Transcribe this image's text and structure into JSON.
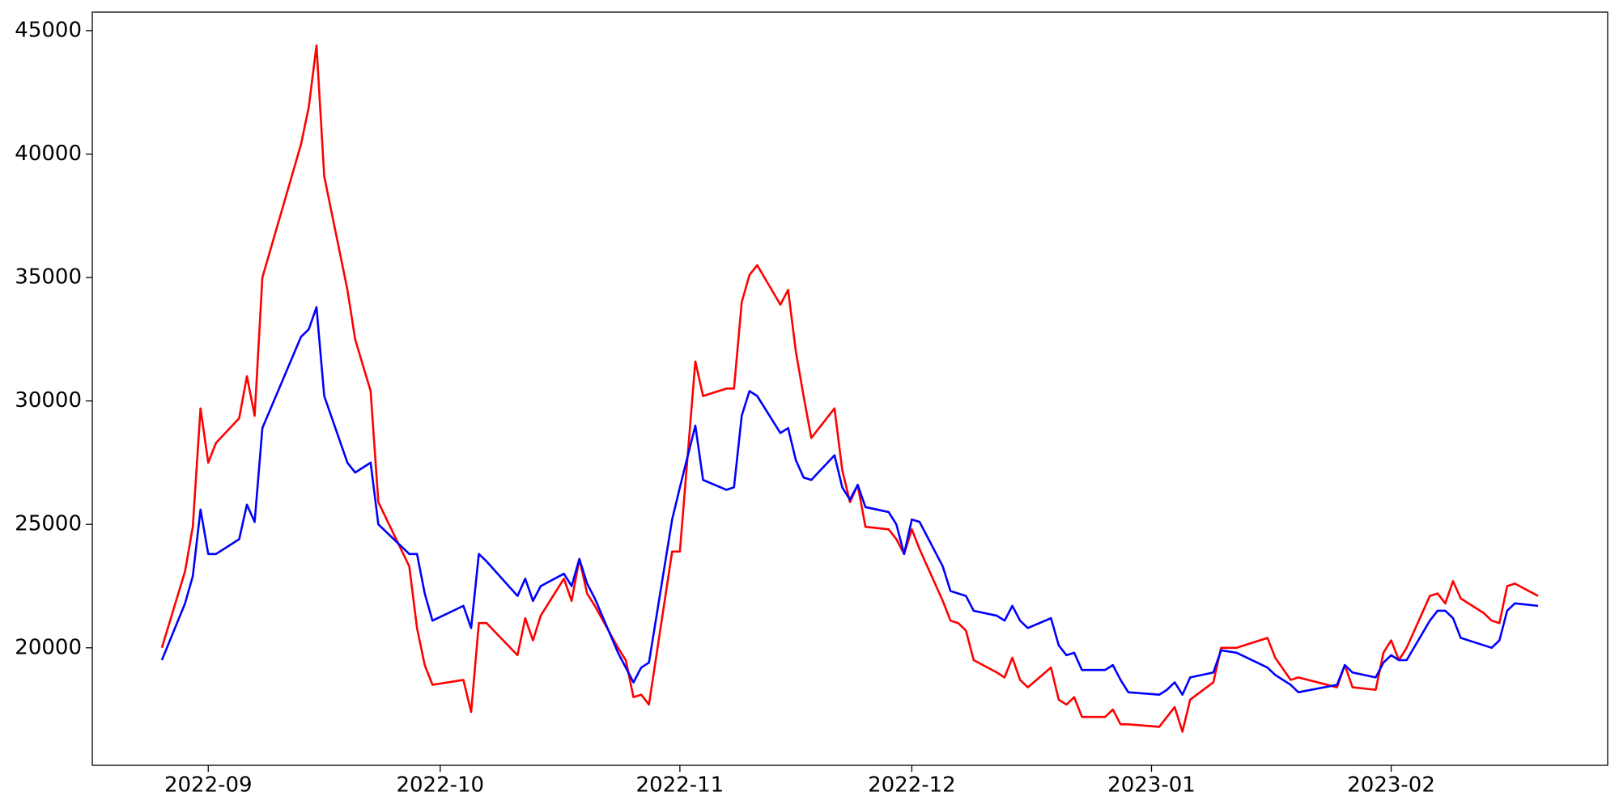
{
  "chart_data": {
    "type": "line",
    "x": [
      -6,
      -3,
      -2,
      -1,
      0,
      1,
      4,
      5,
      6,
      7,
      12,
      13,
      14,
      15,
      18,
      19,
      21,
      22,
      26,
      27,
      28,
      29,
      33,
      34,
      35,
      36,
      40,
      41,
      42,
      43,
      46,
      47,
      48,
      49,
      50,
      53,
      54,
      55,
      56,
      57,
      60,
      61,
      63,
      64,
      67,
      68,
      69,
      70,
      71,
      74,
      75,
      76,
      77,
      78,
      81,
      82,
      83,
      84,
      85,
      88,
      89,
      90,
      91,
      92,
      95,
      96,
      97,
      98,
      99,
      102,
      103,
      104,
      105,
      106,
      109,
      110,
      111,
      112,
      113,
      116,
      117,
      118,
      119,
      123,
      124,
      125,
      126,
      127,
      130,
      131,
      133,
      137,
      138,
      140,
      141,
      146,
      147,
      148,
      151,
      152,
      153,
      154,
      155,
      158,
      159,
      160,
      161,
      162,
      165,
      166,
      167,
      168,
      169,
      172
    ],
    "series": [
      {
        "color": "#ff0000",
        "values": [
          20000,
          23100,
          24900,
          29700,
          27500,
          28300,
          29300,
          31000,
          29400,
          35000,
          40400,
          41900,
          44400,
          39100,
          34500,
          32500,
          30400,
          25900,
          23300,
          20800,
          19300,
          18500,
          18700,
          17400,
          21000,
          21000,
          19700,
          21200,
          20300,
          21300,
          22800,
          21900,
          23600,
          22200,
          21700,
          20000,
          19500,
          18000,
          18100,
          17700,
          23900,
          23900,
          31600,
          30200,
          30500,
          30500,
          34000,
          35100,
          35500,
          33900,
          34500,
          32000,
          30200,
          28500,
          29700,
          27200,
          25900,
          26600,
          24900,
          24800,
          24400,
          23800,
          24800,
          24000,
          21900,
          21100,
          21000,
          20700,
          19500,
          19000,
          18800,
          19600,
          18700,
          18400,
          19200,
          17900,
          17700,
          18000,
          17200,
          17200,
          17500,
          16900,
          16900,
          16800,
          17200,
          17600,
          16600,
          17900,
          18600,
          20000,
          20000,
          20400,
          19600,
          18700,
          18800,
          18400,
          19300,
          18400,
          18300,
          19800,
          20300,
          19500,
          20000,
          22100,
          22200,
          21800,
          22700,
          22000,
          21400,
          21100,
          21000,
          22500,
          22600,
          22100
        ]
      },
      {
        "color": "#0000ff",
        "values": [
          19500,
          21800,
          22900,
          25600,
          23800,
          23800,
          24400,
          25800,
          25100,
          28900,
          32600,
          32900,
          33800,
          30200,
          27500,
          27100,
          27500,
          25000,
          23800,
          23800,
          22200,
          21100,
          21700,
          20800,
          23800,
          23500,
          22100,
          22800,
          21900,
          22500,
          23000,
          22500,
          23600,
          22600,
          22000,
          19800,
          19200,
          18600,
          19200,
          19400,
          25200,
          26500,
          29000,
          26800,
          26400,
          26500,
          29400,
          30400,
          30200,
          28700,
          28900,
          27600,
          26900,
          26800,
          27800,
          26500,
          26000,
          26600,
          25700,
          25500,
          25000,
          23800,
          25200,
          25100,
          23300,
          22300,
          22200,
          22100,
          21500,
          21300,
          21100,
          21700,
          21100,
          20800,
          21200,
          20100,
          19700,
          19800,
          19100,
          19100,
          19300,
          18700,
          18200,
          18100,
          18300,
          18600,
          18100,
          18800,
          19000,
          19900,
          19800,
          19200,
          18900,
          18500,
          18200,
          18500,
          19300,
          19000,
          18800,
          19400,
          19700,
          19500,
          19500,
          21100,
          21500,
          21500,
          21200,
          20400,
          20100,
          20000,
          20300,
          21500,
          21800,
          21700
        ]
      }
    ],
    "xlim": [
      -15,
      181
    ],
    "xticks": [
      {
        "value": 0,
        "label": "2022-09"
      },
      {
        "value": 30,
        "label": "2022-10"
      },
      {
        "value": 61,
        "label": "2022-11"
      },
      {
        "value": 91,
        "label": "2022-12"
      },
      {
        "value": 122,
        "label": "2023-01"
      },
      {
        "value": 153,
        "label": "2023-02"
      }
    ],
    "ylim": [
      15240,
      45750
    ],
    "yticks": [
      20000,
      25000,
      30000,
      35000,
      40000,
      45000
    ]
  }
}
